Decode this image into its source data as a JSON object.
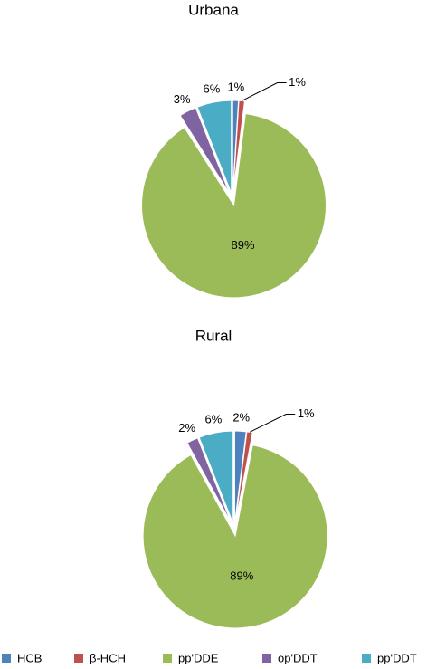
{
  "chart_data": [
    {
      "type": "pie",
      "title": "Urbana",
      "categories": [
        "HCB",
        "β-HCH",
        "pp'DDE",
        "op'DDT",
        "pp'DDT"
      ],
      "values": [
        1,
        1,
        89,
        3,
        6
      ],
      "value_labels": [
        "1%",
        "1%",
        "89%",
        "3%",
        "6%"
      ],
      "colors": [
        "#4f81bd",
        "#c0504d",
        "#9bbb59",
        "#8064a2",
        "#4bacc6"
      ]
    },
    {
      "type": "pie",
      "title": "Rural",
      "categories": [
        "HCB",
        "β-HCH",
        "pp'DDE",
        "op'DDT",
        "pp'DDT"
      ],
      "values": [
        2,
        1,
        89,
        2,
        6
      ],
      "value_labels": [
        "2%",
        "1%",
        "89%",
        "2%",
        "6%"
      ],
      "colors": [
        "#4f81bd",
        "#c0504d",
        "#9bbb59",
        "#8064a2",
        "#4bacc6"
      ]
    }
  ]
}
